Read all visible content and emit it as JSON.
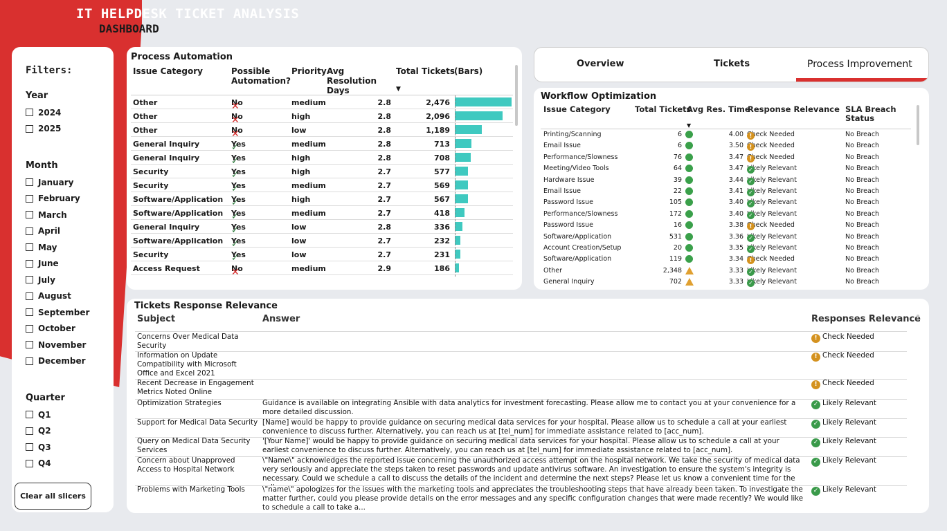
{
  "header": {
    "title_line1": "IT HELPDESK TICKET ANALYSIS",
    "title_line2": "DASHBOARD"
  },
  "filters": {
    "title": "Filters:",
    "year": {
      "label": "Year",
      "options": [
        "2024",
        "2025"
      ]
    },
    "month": {
      "label": "Month",
      "options": [
        "January",
        "February",
        "March",
        "April",
        "May",
        "June",
        "July",
        "August",
        "September",
        "October",
        "November",
        "December"
      ]
    },
    "quarter": {
      "label": "Quarter",
      "options": [
        "Q1",
        "Q2",
        "Q3",
        "Q4"
      ]
    },
    "clear_label": "Clear all slicers"
  },
  "process_automation": {
    "title": "Process Automation",
    "headers": {
      "category": "Issue Category",
      "automation": "Possible Automation?",
      "priority": "Priority",
      "avg": "Avg Resolution Days",
      "total": "Total Tickets",
      "bars": "(Bars)"
    },
    "rows": [
      {
        "category": "Other",
        "automation": "No",
        "priority": "medium",
        "avg": "2.8",
        "total": "2,476",
        "value": 2476
      },
      {
        "category": "Other",
        "automation": "No",
        "priority": "high",
        "avg": "2.8",
        "total": "2,096",
        "value": 2096
      },
      {
        "category": "Other",
        "automation": "No",
        "priority": "low",
        "avg": "2.8",
        "total": "1,189",
        "value": 1189
      },
      {
        "category": "General Inquiry",
        "automation": "Yes",
        "priority": "medium",
        "avg": "2.8",
        "total": "713",
        "value": 713
      },
      {
        "category": "General Inquiry",
        "automation": "Yes",
        "priority": "high",
        "avg": "2.8",
        "total": "708",
        "value": 708
      },
      {
        "category": "Security",
        "automation": "Yes",
        "priority": "high",
        "avg": "2.7",
        "total": "577",
        "value": 577
      },
      {
        "category": "Security",
        "automation": "Yes",
        "priority": "medium",
        "avg": "2.7",
        "total": "569",
        "value": 569
      },
      {
        "category": "Software/Application",
        "automation": "Yes",
        "priority": "high",
        "avg": "2.7",
        "total": "567",
        "value": 567
      },
      {
        "category": "Software/Application",
        "automation": "Yes",
        "priority": "medium",
        "avg": "2.7",
        "total": "418",
        "value": 418
      },
      {
        "category": "General Inquiry",
        "automation": "Yes",
        "priority": "low",
        "avg": "2.8",
        "total": "336",
        "value": 336
      },
      {
        "category": "Software/Application",
        "automation": "Yes",
        "priority": "low",
        "avg": "2.7",
        "total": "232",
        "value": 232
      },
      {
        "category": "Security",
        "automation": "Yes",
        "priority": "low",
        "avg": "2.7",
        "total": "231",
        "value": 231
      },
      {
        "category": "Access Request",
        "automation": "No",
        "priority": "medium",
        "avg": "2.9",
        "total": "186",
        "value": 186
      }
    ]
  },
  "tabs": [
    {
      "label": "Overview"
    },
    {
      "label": "Tickets"
    },
    {
      "label": "Process Improvement"
    }
  ],
  "workflow": {
    "title": "Workflow Optimization",
    "headers": {
      "category": "Issue Category",
      "total": "Total Tickets",
      "avg": "Avg Res. Time",
      "relevance": "Response Relevance",
      "sla": "SLA Breach Status"
    },
    "rows": [
      {
        "category": "Printing/Scanning",
        "total": "6",
        "status": "circle",
        "avg": "4.00",
        "relevance": "Check Needed",
        "sla": "No Breach"
      },
      {
        "category": "Email Issue",
        "total": "6",
        "status": "circle",
        "avg": "3.50",
        "relevance": "Check Needed",
        "sla": "No Breach"
      },
      {
        "category": "Performance/Slowness",
        "total": "76",
        "status": "circle",
        "avg": "3.47",
        "relevance": "Check Needed",
        "sla": "No Breach"
      },
      {
        "category": "Meeting/Video Tools",
        "total": "64",
        "status": "circle",
        "avg": "3.47",
        "relevance": "Likely Relevant",
        "sla": "No Breach"
      },
      {
        "category": "Hardware Issue",
        "total": "39",
        "status": "circle",
        "avg": "3.44",
        "relevance": "Likely Relevant",
        "sla": "No Breach"
      },
      {
        "category": "Email Issue",
        "total": "22",
        "status": "circle",
        "avg": "3.41",
        "relevance": "Likely Relevant",
        "sla": "No Breach"
      },
      {
        "category": "Password Issue",
        "total": "105",
        "status": "circle",
        "avg": "3.40",
        "relevance": "Likely Relevant",
        "sla": "No Breach"
      },
      {
        "category": "Performance/Slowness",
        "total": "172",
        "status": "circle",
        "avg": "3.40",
        "relevance": "Likely Relevant",
        "sla": "No Breach"
      },
      {
        "category": "Password Issue",
        "total": "16",
        "status": "circle",
        "avg": "3.38",
        "relevance": "Check Needed",
        "sla": "No Breach"
      },
      {
        "category": "Software/Application",
        "total": "531",
        "status": "circle",
        "avg": "3.36",
        "relevance": "Likely Relevant",
        "sla": "No Breach"
      },
      {
        "category": "Account Creation/Setup",
        "total": "20",
        "status": "circle",
        "avg": "3.35",
        "relevance": "Likely Relevant",
        "sla": "No Breach"
      },
      {
        "category": "Software/Application",
        "total": "119",
        "status": "circle",
        "avg": "3.34",
        "relevance": "Check Needed",
        "sla": "No Breach"
      },
      {
        "category": "Other",
        "total": "2,348",
        "status": "triangle",
        "avg": "3.33",
        "relevance": "Likely Relevant",
        "sla": "No Breach"
      },
      {
        "category": "General Inquiry",
        "total": "702",
        "status": "triangle",
        "avg": "3.33",
        "relevance": "Likely Relevant",
        "sla": "No Breach"
      }
    ]
  },
  "tickets_response": {
    "title": "Tickets Response Relevance",
    "headers": {
      "subject": "Subject",
      "answer": "Answer",
      "relevance": "Responses Relevance"
    },
    "rows": [
      {
        "subject": "Concerns Over Medical Data Security",
        "answer": "",
        "relevance": "Check Needed"
      },
      {
        "subject": "Information on Update Compatibility with Microsoft Office and Excel 2021",
        "answer": "",
        "relevance": "Check Needed"
      },
      {
        "subject": "Recent Decrease in Engagement Metrics Noted Online",
        "answer": "",
        "relevance": "Check Needed"
      },
      {
        "subject": "Optimization Strategies",
        "answer": "Guidance is available on integrating Ansible with data analytics for investment forecasting. Please allow me to contact you at your convenience for a more detailed discussion.",
        "relevance": "Likely Relevant"
      },
      {
        "subject": "Support for Medical Data Security",
        "answer": "[Name] would be happy to provide guidance on securing medical data services for your hospital. Please allow us to schedule a call at your earliest convenience to discuss further. Alternatively, you can reach us at [tel_num] for immediate assistance related to [acc_num].",
        "relevance": "Likely Relevant"
      },
      {
        "subject": "Query on Medical Data Security Services",
        "answer": "'[Your Name]' would be happy to provide guidance on securing medical data services for your hospital. Please allow us to schedule a call at your earliest convenience to discuss further. Alternatively, you can reach us at [tel_num] for immediate assistance related to [acc_num].",
        "relevance": "Likely Relevant"
      },
      {
        "subject": "Concern about Unapproved Access to Hospital Network",
        "answer": "\\\"Name\\\" acknowledges the reported issue concerning the unauthorized access attempt on the hospital network. We take the security of medical data very seriously and appreciate the steps taken to reset passwords and update antivirus software. An investigation to ensure the system's integrity is necessary. Could we schedule a call to discuss the details of the incident and determine the next steps? Please let us know a convenient time for the call.",
        "relevance": "Likely Relevant"
      },
      {
        "subject": "Problems with Marketing Tools",
        "answer": "\\\"name\\\" apologizes for the issues with the marketing tools and appreciates the troubleshooting steps that have already been taken. To investigate the matter further, could you please provide details on the error messages and any specific configuration changes that were made recently? We would like to schedule a call to take a...",
        "relevance": "Likely Relevant"
      }
    ]
  },
  "colors": {
    "brand_red": "#d9302f",
    "bar_teal": "#3fc9c0",
    "status_green": "#3aa04a",
    "status_amber": "#e0a030"
  }
}
